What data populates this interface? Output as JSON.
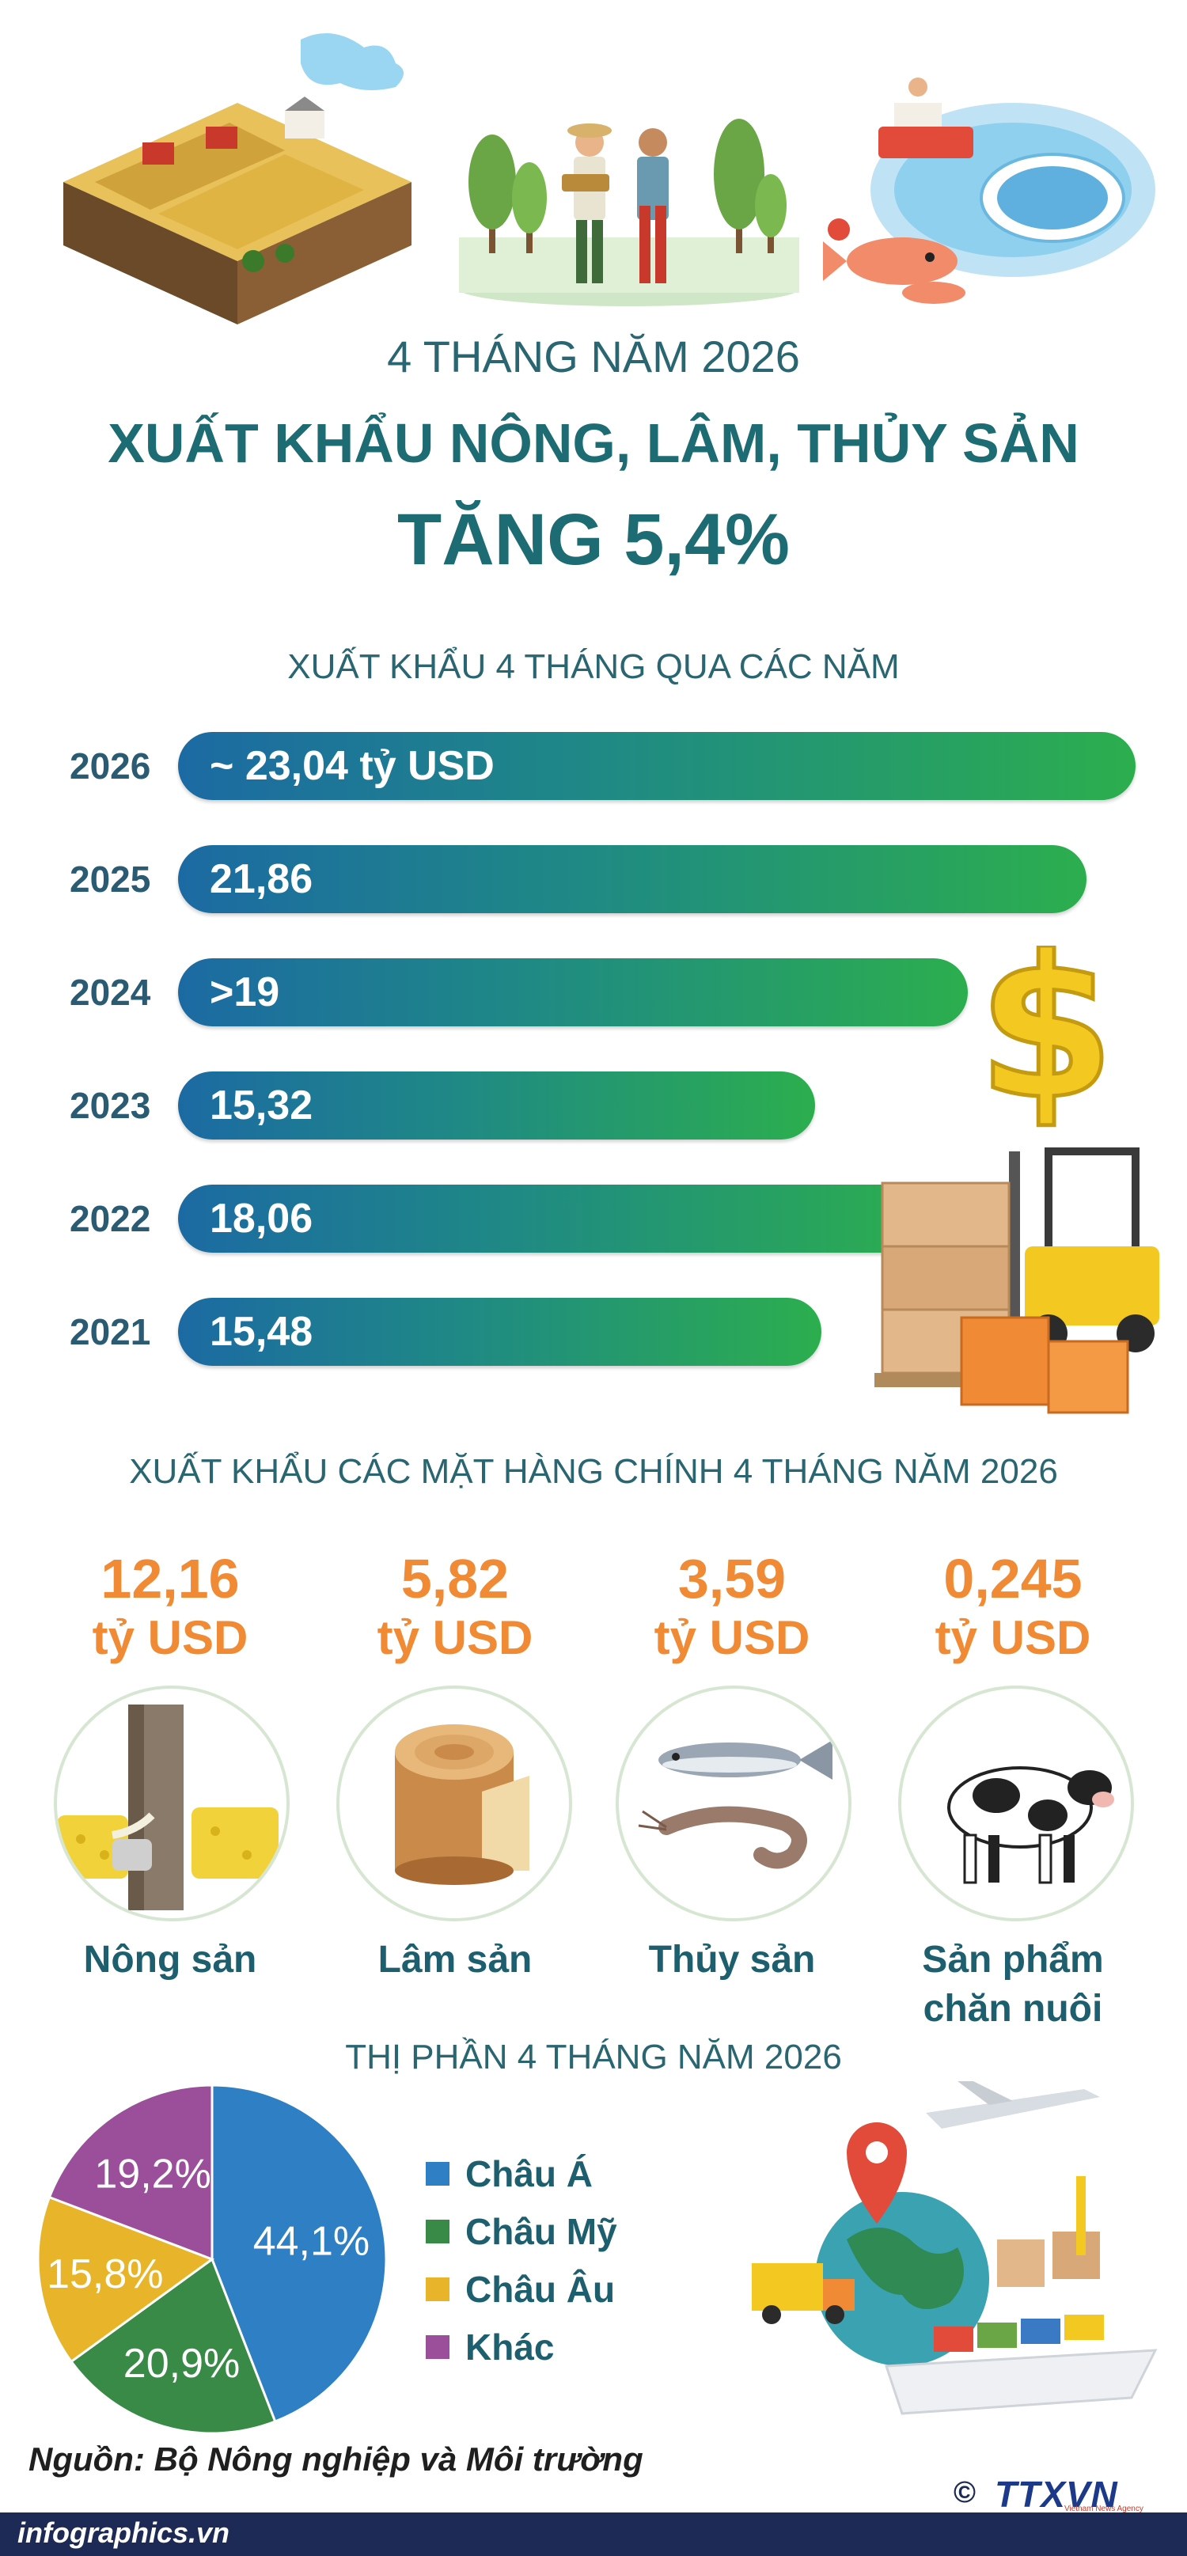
{
  "header": {
    "small": "4 THÁNG NĂM 2026",
    "main": "XUẤT KHẨU NÔNG, LÂM, THỦY SẢN",
    "big": "TĂNG 5,4%"
  },
  "bars_section_title": "XUẤT KHẨU 4 THÁNG QUA CÁC NĂM",
  "products_section_title": "XUẤT KHẨU CÁC MẶT HÀNG CHÍNH 4 THÁNG NĂM 2026",
  "pie_section_title": "THỊ PHẦN 4 THÁNG NĂM 2026",
  "source": "Nguồn: Bộ Nông nghiệp và Môi trường",
  "footer": "infographics.vn",
  "brand": {
    "copyright": "©",
    "logo": "TTXVN",
    "logo_sub": "Vietnam News Agency"
  },
  "colors": {
    "teal": "#1d6b73",
    "orange": "#f08a35",
    "blue": "#2f7fc4",
    "green": "#3a8a47",
    "yellow": "#e8b52a",
    "purple": "#9b4f9b"
  },
  "chart_data": [
    {
      "type": "bar",
      "orientation": "horizontal",
      "title": "XUẤT KHẨU 4 THÁNG QUA CÁC NĂM",
      "categories": [
        "2026",
        "2025",
        "2024",
        "2023",
        "2022",
        "2021"
      ],
      "values": [
        23.04,
        21.86,
        19,
        15.32,
        18.06,
        15.48
      ],
      "labels": [
        "~ 23,04 tỷ USD",
        "21,86",
        ">19",
        "15,32",
        "18,06",
        "15,48"
      ]
    },
    {
      "type": "table",
      "title": "XUẤT KHẨU CÁC MẶT HÀNG CHÍNH 4 THÁNG NĂM 2026",
      "items": [
        {
          "value": "12,16",
          "unit": "tỷ USD",
          "name": "Nông sản",
          "icon": "rubber-latex-icon"
        },
        {
          "value": "5,82",
          "unit": "tỷ USD",
          "name": "Lâm sản",
          "icon": "wood-log-icon"
        },
        {
          "value": "3,59",
          "unit": "tỷ USD",
          "name": "Thủy sản",
          "icon": "fish-shrimp-icon"
        },
        {
          "value": "0,245",
          "unit": "tỷ USD",
          "name": "Sản phẩm chăn nuôi",
          "icon": "cow-icon"
        }
      ]
    },
    {
      "type": "pie",
      "title": "THỊ PHẦN 4 THÁNG NĂM 2026",
      "categories": [
        "Châu Á",
        "Châu Mỹ",
        "Châu Âu",
        "Khác"
      ],
      "values": [
        44.1,
        20.9,
        15.8,
        19.2
      ],
      "labels": [
        "44,1%",
        "20,9%",
        "15,8%",
        "19,2%"
      ],
      "colors": [
        "#2f7fc4",
        "#3a8a47",
        "#e8b52a",
        "#9b4f9b"
      ],
      "legend": "right"
    }
  ]
}
